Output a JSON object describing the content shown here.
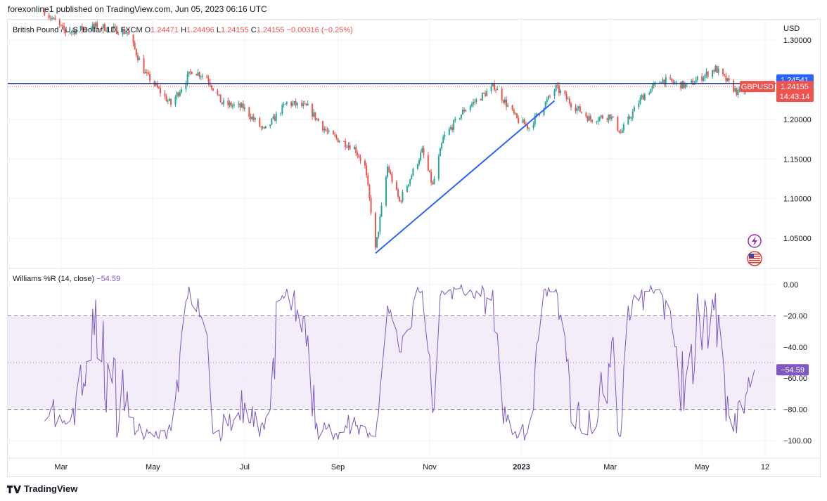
{
  "header": {
    "published": "forexonline1 published on TradingView.com, Jun 05, 2023 06:16 UTC"
  },
  "footer": {
    "brand": "TradingView"
  },
  "colors": {
    "up": "#26a69a",
    "down": "#ef5350",
    "trend": "#2962ff",
    "hline": "#1e3a8a",
    "wr_line": "#7e57c2",
    "wr_band": "#ede7f6",
    "pricebox": "#ef5350",
    "levelbox": "#2962ff"
  },
  "chart_data": [
    {
      "type": "candlestick",
      "title": "British Pound / U.S. Dollar, 1D, FXCM",
      "symbol": "GBPUSD",
      "currency": "USD",
      "ohlc": {
        "o_label": "O",
        "o": "1.24471",
        "h_label": "H",
        "h": "1.24496",
        "l_label": "L",
        "l": "1.24155",
        "c_label": "C",
        "c": "1.24155",
        "change": "−0.00316 (−0.25%)"
      },
      "y_ticks": [
        "1.30000",
        "1.25000",
        "1.20000",
        "1.15000",
        "1.10000",
        "1.05000"
      ],
      "ylim": [
        1.0127,
        1.3259
      ],
      "x_ticks": [
        "Mar",
        "May",
        "Jul",
        "Sep",
        "Nov",
        "2023",
        "Mar",
        "May",
        "12"
      ],
      "horizontal_line": {
        "value": 1.2454,
        "label": "1.24541"
      },
      "last_price": {
        "value": 1.24155,
        "label": "1.24155",
        "countdown": "14:43:14",
        "symbol": "GBPUSD"
      },
      "trendline": {
        "from": [
          "2022-09-26",
          1.031
        ],
        "to": [
          "2023-01-23",
          1.2235
        ]
      },
      "anchors": [
        [
          "2022-02-18",
          1.3367
        ],
        [
          "2022-03-04",
          1.31
        ],
        [
          "2022-03-25",
          1.318
        ],
        [
          "2022-04-14",
          1.31
        ],
        [
          "2022-04-26",
          1.2576
        ],
        [
          "2022-05-13",
          1.219
        ],
        [
          "2022-05-27",
          1.262
        ],
        [
          "2022-06-06",
          1.253
        ],
        [
          "2022-06-16",
          1.22
        ],
        [
          "2022-06-30",
          1.215
        ],
        [
          "2022-07-14",
          1.185
        ],
        [
          "2022-07-29",
          1.221
        ],
        [
          "2022-08-12",
          1.215
        ],
        [
          "2022-08-26",
          1.181
        ],
        [
          "2022-09-12",
          1.164
        ],
        [
          "2022-09-19",
          1.14
        ],
        [
          "2022-09-23",
          1.085
        ],
        [
          "2022-09-26",
          1.035
        ],
        [
          "2022-10-04",
          1.14
        ],
        [
          "2022-10-12",
          1.096
        ],
        [
          "2022-10-27",
          1.16
        ],
        [
          "2022-11-03",
          1.116
        ],
        [
          "2022-11-10",
          1.176
        ],
        [
          "2022-11-24",
          1.212
        ],
        [
          "2022-12-14",
          1.242
        ],
        [
          "2022-12-29",
          1.2
        ],
        [
          "2023-01-06",
          1.19
        ],
        [
          "2023-01-24",
          1.24
        ],
        [
          "2023-02-03",
          1.22
        ],
        [
          "2023-02-16",
          1.2
        ],
        [
          "2023-03-01",
          1.205
        ],
        [
          "2023-03-08",
          1.183
        ],
        [
          "2023-03-22",
          1.228
        ],
        [
          "2023-04-04",
          1.25
        ],
        [
          "2023-04-21",
          1.242
        ],
        [
          "2023-05-10",
          1.264
        ],
        [
          "2023-05-25",
          1.233
        ],
        [
          "2023-06-05",
          1.2416
        ]
      ]
    },
    {
      "type": "line",
      "title": "Williams %R (14, close)",
      "value_label": "−54.59",
      "y_ticks": [
        "0.00",
        "−20.00",
        "−40.00",
        "−60.00",
        "−80.00",
        "−100.00"
      ],
      "ylim": [
        -100,
        0
      ],
      "band": [
        -80,
        -20
      ],
      "midline": -50,
      "series": [
        {
          "values": []
        }
      ]
    }
  ]
}
